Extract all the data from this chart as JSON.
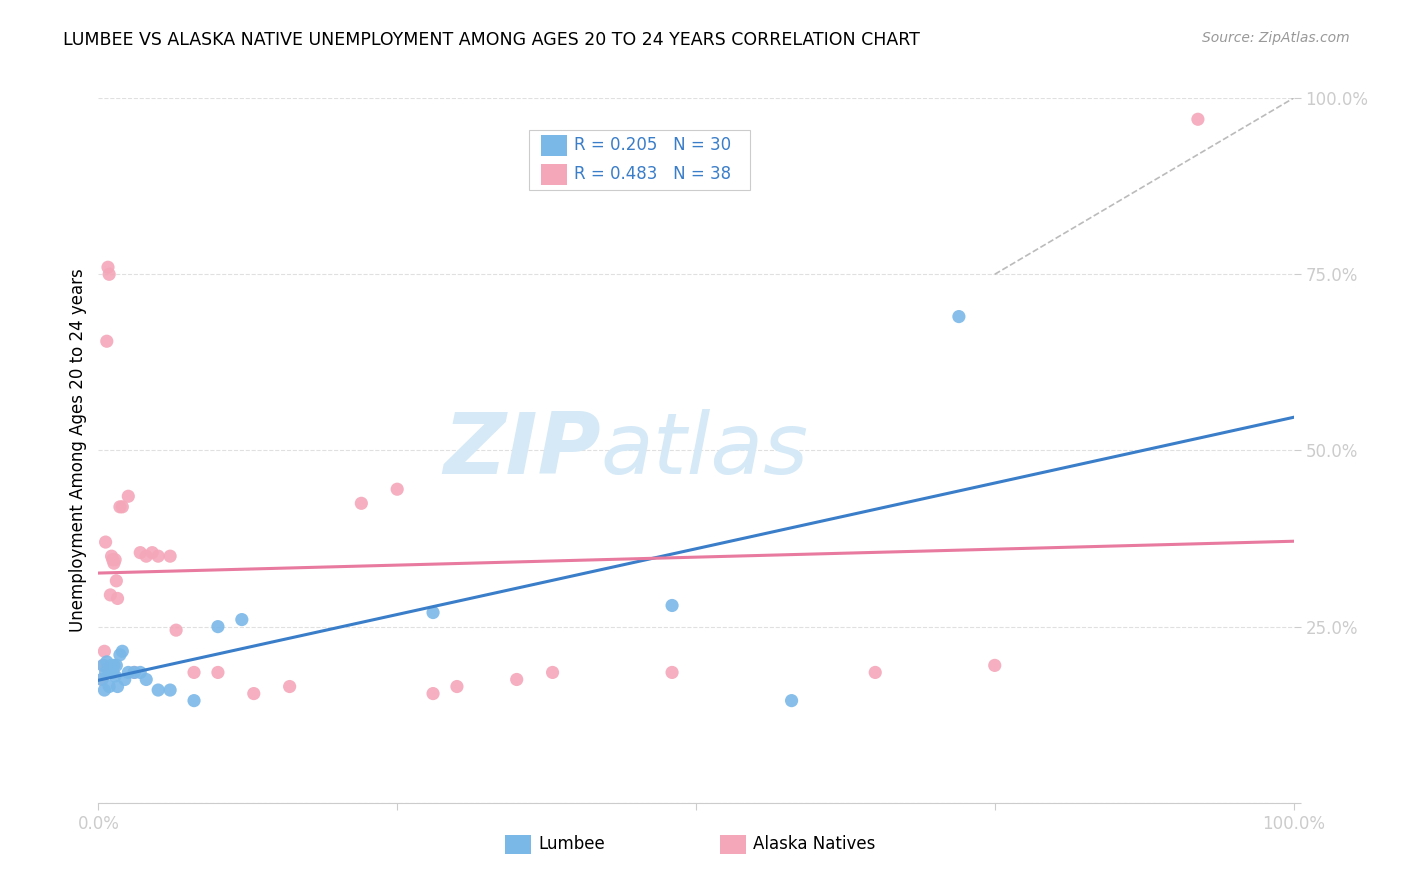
{
  "title": "LUMBEE VS ALASKA NATIVE UNEMPLOYMENT AMONG AGES 20 TO 24 YEARS CORRELATION CHART",
  "source": "Source: ZipAtlas.com",
  "ylabel": "Unemployment Among Ages 20 to 24 years",
  "legend_lumbee_label": "Lumbee",
  "legend_alaska_label": "Alaska Natives",
  "lumbee_R": "0.205",
  "lumbee_N": "30",
  "alaska_R": "0.483",
  "alaska_N": "38",
  "lumbee_color": "#7ab8e8",
  "alaska_color": "#f4a7b9",
  "lumbee_line_color": "#3a7dc9",
  "alaska_line_color": "#e87a9f",
  "background_color": "#ffffff",
  "grid_color": "#e0e0e0",
  "watermark_color": "#d5e9f7",
  "dashed_line_color": "#bbbbbb",
  "lumbee_x": [
    0.003,
    0.004,
    0.005,
    0.006,
    0.007,
    0.008,
    0.009,
    0.01,
    0.011,
    0.012,
    0.013,
    0.014,
    0.015,
    0.016,
    0.018,
    0.02,
    0.022,
    0.025,
    0.03,
    0.035,
    0.04,
    0.05,
    0.06,
    0.08,
    0.1,
    0.12,
    0.28,
    0.48,
    0.58,
    0.72
  ],
  "lumbee_y": [
    0.175,
    0.195,
    0.16,
    0.185,
    0.2,
    0.19,
    0.165,
    0.185,
    0.195,
    0.185,
    0.195,
    0.18,
    0.195,
    0.165,
    0.21,
    0.215,
    0.175,
    0.185,
    0.185,
    0.185,
    0.175,
    0.16,
    0.16,
    0.145,
    0.25,
    0.26,
    0.27,
    0.28,
    0.145,
    0.69
  ],
  "alaska_x": [
    0.003,
    0.004,
    0.005,
    0.006,
    0.007,
    0.008,
    0.009,
    0.01,
    0.011,
    0.012,
    0.013,
    0.014,
    0.015,
    0.016,
    0.018,
    0.02,
    0.025,
    0.03,
    0.035,
    0.04,
    0.045,
    0.05,
    0.06,
    0.065,
    0.08,
    0.1,
    0.13,
    0.16,
    0.22,
    0.25,
    0.28,
    0.3,
    0.35,
    0.38,
    0.48,
    0.65,
    0.75,
    0.92
  ],
  "alaska_y": [
    0.175,
    0.195,
    0.215,
    0.37,
    0.655,
    0.76,
    0.75,
    0.295,
    0.35,
    0.345,
    0.34,
    0.345,
    0.315,
    0.29,
    0.42,
    0.42,
    0.435,
    0.185,
    0.355,
    0.35,
    0.355,
    0.35,
    0.35,
    0.245,
    0.185,
    0.185,
    0.155,
    0.165,
    0.425,
    0.445,
    0.155,
    0.165,
    0.175,
    0.185,
    0.185,
    0.185,
    0.195,
    0.97
  ],
  "xlim": [
    0.0,
    1.0
  ],
  "ylim": [
    0.0,
    1.0
  ],
  "ytick_positions": [
    0.0,
    0.25,
    0.5,
    0.75,
    1.0
  ],
  "xtick_positions": [
    0.0,
    0.25,
    0.5,
    0.75,
    1.0
  ]
}
